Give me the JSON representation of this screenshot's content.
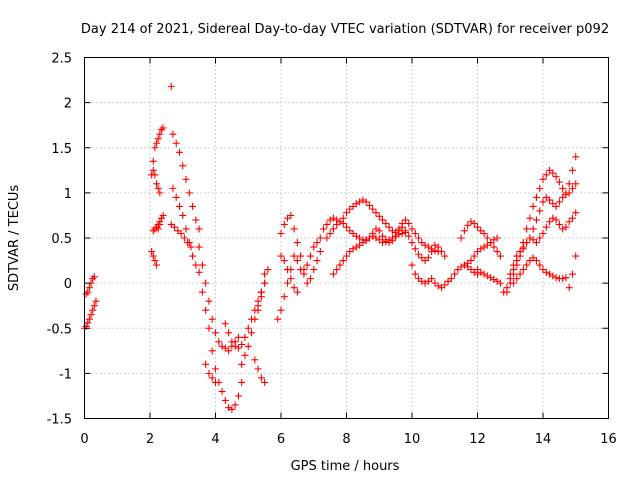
{
  "chart_data": {
    "type": "scatter",
    "title": "Day 214 of 2021, Sidereal Day-to-day VTEC variation (SDTVAR) for receiver p092",
    "xlabel": "GPS time / hours",
    "ylabel": "SDTVAR / TECUs",
    "xlim": [
      0,
      16
    ],
    "ylim": [
      -1.5,
      2.5
    ],
    "xticks": [
      0,
      2,
      4,
      6,
      8,
      10,
      12,
      14,
      16
    ],
    "xtick_labels": [
      "0",
      "2",
      "4",
      "6",
      "8",
      "10",
      "12",
      "14",
      "16"
    ],
    "yticks": [
      -1.5,
      -1,
      -0.5,
      0,
      0.5,
      1,
      1.5,
      2,
      2.5
    ],
    "ytick_labels": [
      "-1.5",
      "-1",
      "-0.5",
      "0",
      "0.5",
      "1",
      "1.5",
      "2",
      "2.5"
    ],
    "grid": true,
    "marker": "+",
    "marker_color": "#ff0000",
    "series": [
      {
        "name": "s1",
        "x": [
          0.0,
          0.05,
          0.1,
          0.15,
          0.2,
          0.25,
          0.3,
          0.35
        ],
        "y": [
          -0.5,
          -0.48,
          -0.44,
          -0.4,
          -0.35,
          -0.3,
          -0.25,
          -0.2
        ]
      },
      {
        "name": "s2",
        "x": [
          0.05,
          0.1,
          0.15,
          0.2,
          0.25,
          0.3
        ],
        "y": [
          -0.12,
          -0.1,
          -0.05,
          0.0,
          0.05,
          0.07
        ]
      },
      {
        "name": "s3",
        "x": [
          2.05,
          2.1,
          2.15,
          2.2,
          2.25,
          2.3,
          2.35,
          2.4
        ],
        "y": [
          1.2,
          1.35,
          1.5,
          1.55,
          1.6,
          1.65,
          1.7,
          1.72
        ]
      },
      {
        "name": "s4",
        "x": [
          2.05,
          2.1,
          2.15,
          2.2,
          2.25,
          2.3
        ],
        "y": [
          0.35,
          0.3,
          0.25,
          0.2,
          0.6,
          0.65
        ]
      },
      {
        "name": "s5",
        "x": [
          2.1,
          2.15,
          2.2,
          2.25,
          2.3,
          2.35,
          2.4
        ],
        "y": [
          0.58,
          0.6,
          0.62,
          0.65,
          0.68,
          0.72,
          0.75
        ]
      },
      {
        "name": "s6",
        "x": [
          2.1,
          2.15,
          2.2,
          2.25,
          2.3
        ],
        "y": [
          1.25,
          1.2,
          1.1,
          1.05,
          1.0
        ]
      },
      {
        "name": "s7",
        "x": [
          2.65
        ],
        "y": [
          2.18
        ]
      },
      {
        "name": "s8",
        "x": [
          2.7,
          2.8,
          2.9,
          3.0,
          3.1,
          3.2,
          3.3,
          3.4,
          3.5
        ],
        "y": [
          1.65,
          1.55,
          1.45,
          1.3,
          1.15,
          1.0,
          0.85,
          0.7,
          0.6
        ]
      },
      {
        "name": "s9",
        "x": [
          2.7,
          2.8,
          2.9,
          3.0,
          3.1,
          3.2,
          3.3,
          3.4,
          3.5
        ],
        "y": [
          1.05,
          0.95,
          0.85,
          0.75,
          0.6,
          0.45,
          0.3,
          0.2,
          0.12
        ]
      },
      {
        "name": "s10",
        "x": [
          2.65,
          2.75,
          2.85,
          2.95,
          3.05,
          3.15,
          3.25
        ],
        "y": [
          0.65,
          0.62,
          0.58,
          0.55,
          0.5,
          0.45,
          0.4
        ]
      },
      {
        "name": "s11",
        "x": [
          3.5,
          3.6,
          3.7,
          3.8,
          3.9,
          4.0,
          4.1,
          4.2,
          4.3,
          4.4,
          4.5,
          4.6,
          4.7
        ],
        "y": [
          0.4,
          0.2,
          0.0,
          -0.2,
          -0.4,
          -0.55,
          -0.65,
          -0.7,
          -0.72,
          -0.75,
          -0.7,
          -0.65,
          -0.6
        ]
      },
      {
        "name": "s12",
        "x": [
          3.6,
          3.7,
          3.8,
          3.9,
          4.0,
          4.1,
          4.2,
          4.3,
          4.4,
          4.5,
          4.6,
          4.7,
          4.8
        ],
        "y": [
          -0.1,
          -0.3,
          -0.5,
          -0.75,
          -0.95,
          -1.1,
          -1.2,
          -1.3,
          -1.38,
          -1.4,
          -1.35,
          -1.25,
          -1.1
        ]
      },
      {
        "name": "s13",
        "x": [
          3.7,
          3.8,
          3.9,
          4.0
        ],
        "y": [
          -0.9,
          -1.0,
          -1.05,
          -1.1
        ]
      },
      {
        "name": "s14",
        "x": [
          4.3,
          4.4,
          4.5,
          4.6,
          4.7,
          4.8,
          4.9,
          5.0,
          5.1,
          5.2,
          5.3,
          5.4,
          5.5
        ],
        "y": [
          -0.45,
          -0.55,
          -0.65,
          -0.7,
          -0.72,
          -0.68,
          -0.6,
          -0.5,
          -0.4,
          -0.3,
          -0.2,
          -0.1,
          0.0
        ]
      },
      {
        "name": "s15",
        "x": [
          4.8,
          4.9,
          5.0,
          5.1,
          5.2,
          5.3,
          5.4,
          5.5
        ],
        "y": [
          -0.9,
          -0.8,
          -0.7,
          -0.55,
          -0.4,
          -0.25,
          -0.1,
          0.1
        ]
      },
      {
        "name": "s16",
        "x": [
          5.2,
          5.3,
          5.4,
          5.5
        ],
        "y": [
          -0.85,
          -0.95,
          -1.05,
          -1.1
        ]
      },
      {
        "name": "s17",
        "x": [
          5.3,
          5.4,
          5.5,
          5.6
        ],
        "y": [
          -0.3,
          -0.15,
          0.0,
          0.15
        ]
      },
      {
        "name": "s18",
        "x": [
          5.9,
          6.0,
          6.1,
          6.2,
          6.3,
          6.4,
          6.5,
          6.6,
          6.7,
          6.8,
          6.9,
          7.0,
          7.1,
          7.2
        ],
        "y": [
          -0.4,
          -0.3,
          -0.15,
          0.0,
          0.15,
          0.3,
          0.25,
          0.15,
          0.1,
          0.2,
          0.3,
          0.4,
          0.45,
          0.5
        ]
      },
      {
        "name": "s19",
        "x": [
          6.0,
          6.1,
          6.2,
          6.3,
          6.4,
          6.5,
          6.6,
          6.7,
          6.8,
          6.9,
          7.0,
          7.1,
          7.2
        ],
        "y": [
          0.55,
          0.65,
          0.72,
          0.75,
          0.6,
          0.45,
          0.3,
          0.15,
          0.0,
          0.05,
          0.15,
          0.25,
          0.35
        ]
      },
      {
        "name": "s20",
        "x": [
          6.0,
          6.1,
          6.2,
          6.3,
          6.4,
          6.5
        ],
        "y": [
          0.3,
          0.25,
          0.15,
          0.05,
          -0.05,
          -0.1
        ]
      },
      {
        "name": "s21",
        "x": [
          7.3,
          7.4,
          7.5,
          7.6,
          7.7,
          7.8,
          7.9,
          8.0,
          8.1,
          8.2,
          8.3,
          8.4,
          8.5,
          8.6,
          8.7,
          8.8,
          8.9,
          9.0,
          9.1,
          9.2,
          9.3,
          9.4,
          9.5,
          9.6,
          9.7,
          9.8,
          9.9,
          10.0,
          10.1,
          10.2,
          10.3,
          10.4,
          10.5,
          10.6,
          10.7,
          10.8
        ],
        "y": [
          0.6,
          0.65,
          0.7,
          0.72,
          0.7,
          0.68,
          0.72,
          0.78,
          0.82,
          0.85,
          0.88,
          0.9,
          0.92,
          0.9,
          0.86,
          0.82,
          0.78,
          0.74,
          0.7,
          0.66,
          0.62,
          0.58,
          0.56,
          0.6,
          0.66,
          0.7,
          0.66,
          0.6,
          0.55,
          0.5,
          0.45,
          0.42,
          0.4,
          0.38,
          0.36,
          0.35
        ]
      },
      {
        "name": "s22",
        "x": [
          7.4,
          7.5,
          7.6,
          7.7,
          7.8,
          7.9,
          8.0,
          8.1,
          8.2,
          8.3,
          8.4,
          8.5,
          8.6,
          8.7,
          8.8,
          8.9,
          9.0,
          9.1,
          9.2,
          9.3,
          9.4,
          9.5,
          9.6,
          9.7,
          9.8,
          9.9,
          10.0,
          10.1,
          10.2,
          10.3,
          10.4,
          10.5,
          10.6,
          10.7,
          10.8,
          10.9,
          11.0
        ],
        "y": [
          0.5,
          0.55,
          0.6,
          0.65,
          0.68,
          0.66,
          0.62,
          0.58,
          0.55,
          0.52,
          0.5,
          0.48,
          0.47,
          0.5,
          0.55,
          0.6,
          0.58,
          0.52,
          0.48,
          0.45,
          0.47,
          0.52,
          0.58,
          0.62,
          0.58,
          0.52,
          0.45,
          0.38,
          0.32,
          0.28,
          0.25,
          0.28,
          0.35,
          0.42,
          0.4,
          0.35,
          0.3
        ]
      },
      {
        "name": "s23",
        "x": [
          7.6,
          7.7,
          7.8,
          7.9,
          8.0,
          8.1,
          8.2,
          8.3,
          8.4,
          8.5,
          8.6,
          8.7,
          8.8,
          8.9,
          9.0,
          9.1,
          9.2,
          9.3,
          9.4,
          9.5,
          9.6,
          9.7,
          9.8
        ],
        "y": [
          0.1,
          0.15,
          0.2,
          0.25,
          0.3,
          0.35,
          0.38,
          0.4,
          0.42,
          0.45,
          0.48,
          0.5,
          0.52,
          0.5,
          0.48,
          0.45,
          0.46,
          0.48,
          0.5,
          0.52,
          0.54,
          0.55,
          0.56
        ]
      },
      {
        "name": "s24",
        "x": [
          10.0,
          10.1,
          10.2,
          10.3,
          10.4,
          10.5,
          10.6,
          10.7,
          10.8,
          10.9,
          11.0,
          11.1,
          11.2,
          11.3,
          11.4,
          11.5,
          11.6,
          11.7,
          11.8,
          11.9,
          12.0
        ],
        "y": [
          0.2,
          0.1,
          0.05,
          0.02,
          0.0,
          0.02,
          0.05,
          0.0,
          -0.03,
          -0.05,
          -0.02,
          0.02,
          0.05,
          0.1,
          0.15,
          0.18,
          0.2,
          0.18,
          0.15,
          0.12,
          0.1
        ]
      },
      {
        "name": "s25",
        "x": [
          11.5,
          11.6,
          11.7,
          11.8,
          11.9,
          12.0,
          12.1,
          12.2,
          12.3,
          12.4,
          12.5,
          12.6,
          12.7
        ],
        "y": [
          0.5,
          0.58,
          0.64,
          0.68,
          0.66,
          0.62,
          0.58,
          0.55,
          0.5,
          0.45,
          0.4,
          0.35,
          0.3
        ]
      },
      {
        "name": "s26",
        "x": [
          11.6,
          11.7,
          11.8,
          11.9,
          12.0,
          12.1,
          12.2,
          12.3,
          12.4,
          12.5,
          12.6
        ],
        "y": [
          0.2,
          0.22,
          0.25,
          0.3,
          0.35,
          0.38,
          0.4,
          0.42,
          0.45,
          0.48,
          0.5
        ]
      },
      {
        "name": "s27",
        "x": [
          12.0,
          12.1,
          12.2,
          12.3,
          12.4,
          12.5,
          12.6,
          12.7
        ],
        "y": [
          0.15,
          0.12,
          0.1,
          0.08,
          0.06,
          0.04,
          0.02,
          0.0
        ]
      },
      {
        "name": "s28",
        "x": [
          12.8,
          12.9,
          13.0,
          13.1,
          13.2,
          13.3,
          13.4,
          13.5,
          13.6,
          13.7,
          13.8,
          13.9,
          14.0,
          14.1,
          14.2,
          14.3,
          14.4,
          14.5,
          14.6,
          14.7,
          14.8,
          14.9,
          15.0
        ],
        "y": [
          -0.1,
          -0.05,
          0.05,
          0.15,
          0.25,
          0.35,
          0.45,
          0.6,
          0.72,
          0.85,
          0.95,
          1.05,
          1.15,
          1.2,
          1.25,
          1.22,
          1.18,
          1.12,
          1.05,
          1.0,
          1.1,
          1.25,
          1.4
        ]
      },
      {
        "name": "s29",
        "x": [
          12.9,
          13.0,
          13.1,
          13.2,
          13.3,
          13.4,
          13.5,
          13.6,
          13.7,
          13.8,
          13.9,
          14.0,
          14.1,
          14.2,
          14.3,
          14.4,
          14.5,
          14.6,
          14.7,
          14.8,
          14.9,
          15.0
        ],
        "y": [
          -0.1,
          0.0,
          0.1,
          0.2,
          0.3,
          0.38,
          0.45,
          0.5,
          0.6,
          0.7,
          0.8,
          0.9,
          0.95,
          0.92,
          0.88,
          0.85,
          0.9,
          0.95,
          0.98,
          1.0,
          1.05,
          1.1
        ]
      },
      {
        "name": "s30",
        "x": [
          13.0,
          13.1,
          13.2,
          13.3,
          13.4,
          13.5,
          13.6,
          13.7,
          13.8,
          13.9,
          14.0,
          14.1,
          14.2,
          14.3,
          14.4,
          14.5,
          14.6,
          14.7,
          14.8,
          14.9,
          15.0
        ],
        "y": [
          0.1,
          0.2,
          0.3,
          0.35,
          0.4,
          0.45,
          0.5,
          0.48,
          0.45,
          0.5,
          0.55,
          0.62,
          0.68,
          0.72,
          0.7,
          0.65,
          0.6,
          0.62,
          0.68,
          0.72,
          0.78
        ]
      },
      {
        "name": "s31",
        "x": [
          13.1,
          13.2,
          13.3,
          13.4,
          13.5,
          13.6,
          13.7,
          13.8,
          13.9,
          14.0,
          14.1,
          14.2,
          14.3,
          14.4,
          14.5,
          14.6,
          14.7
        ],
        "y": [
          0.0,
          0.05,
          0.1,
          0.15,
          0.2,
          0.25,
          0.28,
          0.25,
          0.2,
          0.15,
          0.12,
          0.1,
          0.08,
          0.06,
          0.05,
          0.05,
          0.06
        ]
      },
      {
        "name": "s32",
        "x": [
          14.8,
          14.9,
          15.0
        ],
        "y": [
          -0.05,
          0.1,
          0.3
        ]
      }
    ]
  }
}
